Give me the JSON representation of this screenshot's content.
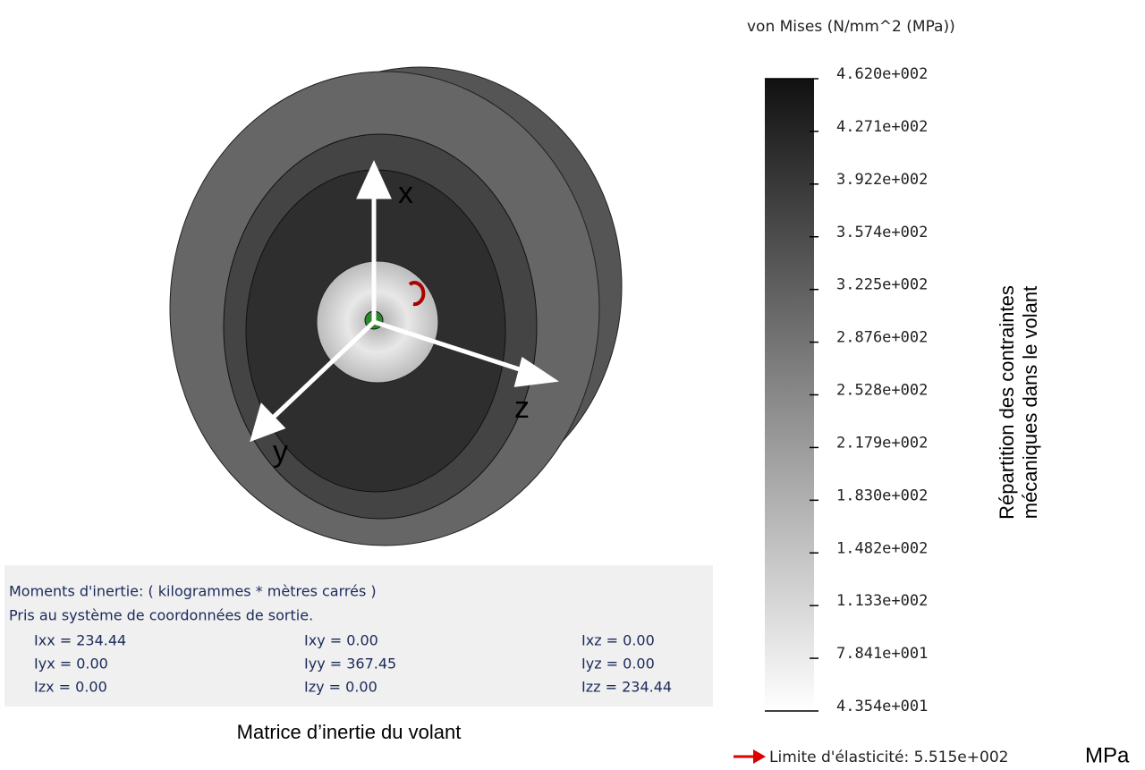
{
  "legend": {
    "title": "von Mises (N/mm^2 (MPa))",
    "ticks": [
      "4.620e+002",
      "4.271e+002",
      "3.922e+002",
      "3.574e+002",
      "3.225e+002",
      "2.876e+002",
      "2.528e+002",
      "2.179e+002",
      "1.830e+002",
      "1.482e+002",
      "1.133e+002",
      "7.841e+001",
      "4.354e+001"
    ],
    "caption_lines": [
      "Répartition des contraintes",
      "mécaniques dans le volant"
    ],
    "yield_label": "Limite d'élasticité: 5.515e+002",
    "yield_unit": "MPa"
  },
  "axes": {
    "x": "x",
    "y": "y",
    "z": "z"
  },
  "inertia": {
    "lines": [
      "Moments d'inertie: ( kilogrammes * mètres carrés )",
      "Pris au système de coordonnées de sortie."
    ],
    "rows": [
      [
        "Ixx = 234.44",
        "Ixy = 0.00",
        "Ixz = 0.00"
      ],
      [
        "Iyx = 0.00",
        "Iyy = 367.45",
        "Iyz = 0.00"
      ],
      [
        "Izx = 0.00",
        "Izy = 0.00",
        "Izz = 234.44"
      ]
    ],
    "caption": "Matrice d’inertie du volant"
  }
}
